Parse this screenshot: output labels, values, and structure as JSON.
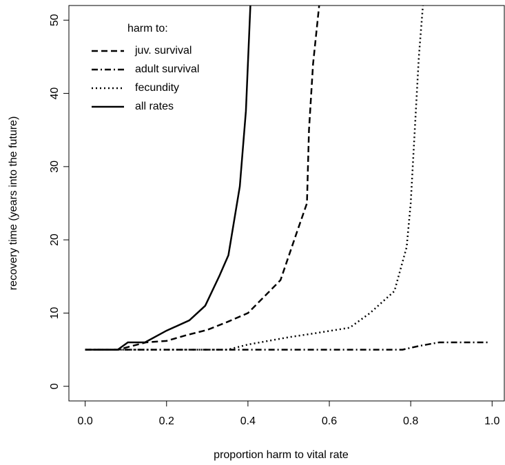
{
  "chart_data": {
    "type": "line",
    "xlabel": "proportion harm to vital rate",
    "ylabel": "recovery time (years into the future)",
    "legend_title": "harm to:",
    "legend": "top-left",
    "xlim": [
      -0.04,
      1.03
    ],
    "ylim": [
      -2,
      52
    ],
    "xticks": [
      {
        "value": 0,
        "label": "0.0"
      },
      {
        "value": 0.2,
        "label": "0.2"
      },
      {
        "value": 0.4,
        "label": "0.4"
      },
      {
        "value": 0.6,
        "label": "0.6"
      },
      {
        "value": 0.8,
        "label": "0.8"
      },
      {
        "value": 1,
        "label": "1.0"
      }
    ],
    "yticks": [
      0,
      10,
      20,
      30,
      40,
      50
    ],
    "series": [
      {
        "name": "juv. survival",
        "color": "#000000",
        "linestyle": "dashed",
        "x": [
          0,
          0.08,
          0.15,
          0.2,
          0.25,
          0.3,
          0.35,
          0.4,
          0.45,
          0.48,
          0.52,
          0.545,
          0.55,
          0.56,
          0.575
        ],
        "values": [
          5,
          5,
          6,
          6.2,
          7,
          7.7,
          8.8,
          10,
          12.8,
          14.5,
          21,
          25,
          35,
          44,
          52
        ]
      },
      {
        "name": "adult survival",
        "color": "#000000",
        "linestyle": "dashdot",
        "x": [
          0,
          0.78,
          0.82,
          0.87,
          0.99
        ],
        "values": [
          5,
          5,
          5.5,
          6,
          6
        ]
      },
      {
        "name": "fecundity",
        "color": "#000000",
        "linestyle": "dotted",
        "x": [
          0,
          0.35,
          0.4,
          0.5,
          0.56,
          0.65,
          0.7,
          0.76,
          0.79,
          0.8,
          0.81,
          0.82,
          0.83
        ],
        "values": [
          5,
          5,
          5.7,
          6.7,
          7.2,
          8,
          10,
          13,
          19,
          25,
          35,
          45,
          52
        ]
      },
      {
        "name": "all rates",
        "color": "#000000",
        "linestyle": "solid",
        "x": [
          0,
          0.08,
          0.105,
          0.147,
          0.2,
          0.256,
          0.295,
          0.33,
          0.352,
          0.38,
          0.395,
          0.406
        ],
        "values": [
          5,
          5,
          6,
          6,
          7.6,
          9,
          11,
          15.1,
          17.9,
          27.3,
          37.6,
          52
        ]
      }
    ]
  }
}
